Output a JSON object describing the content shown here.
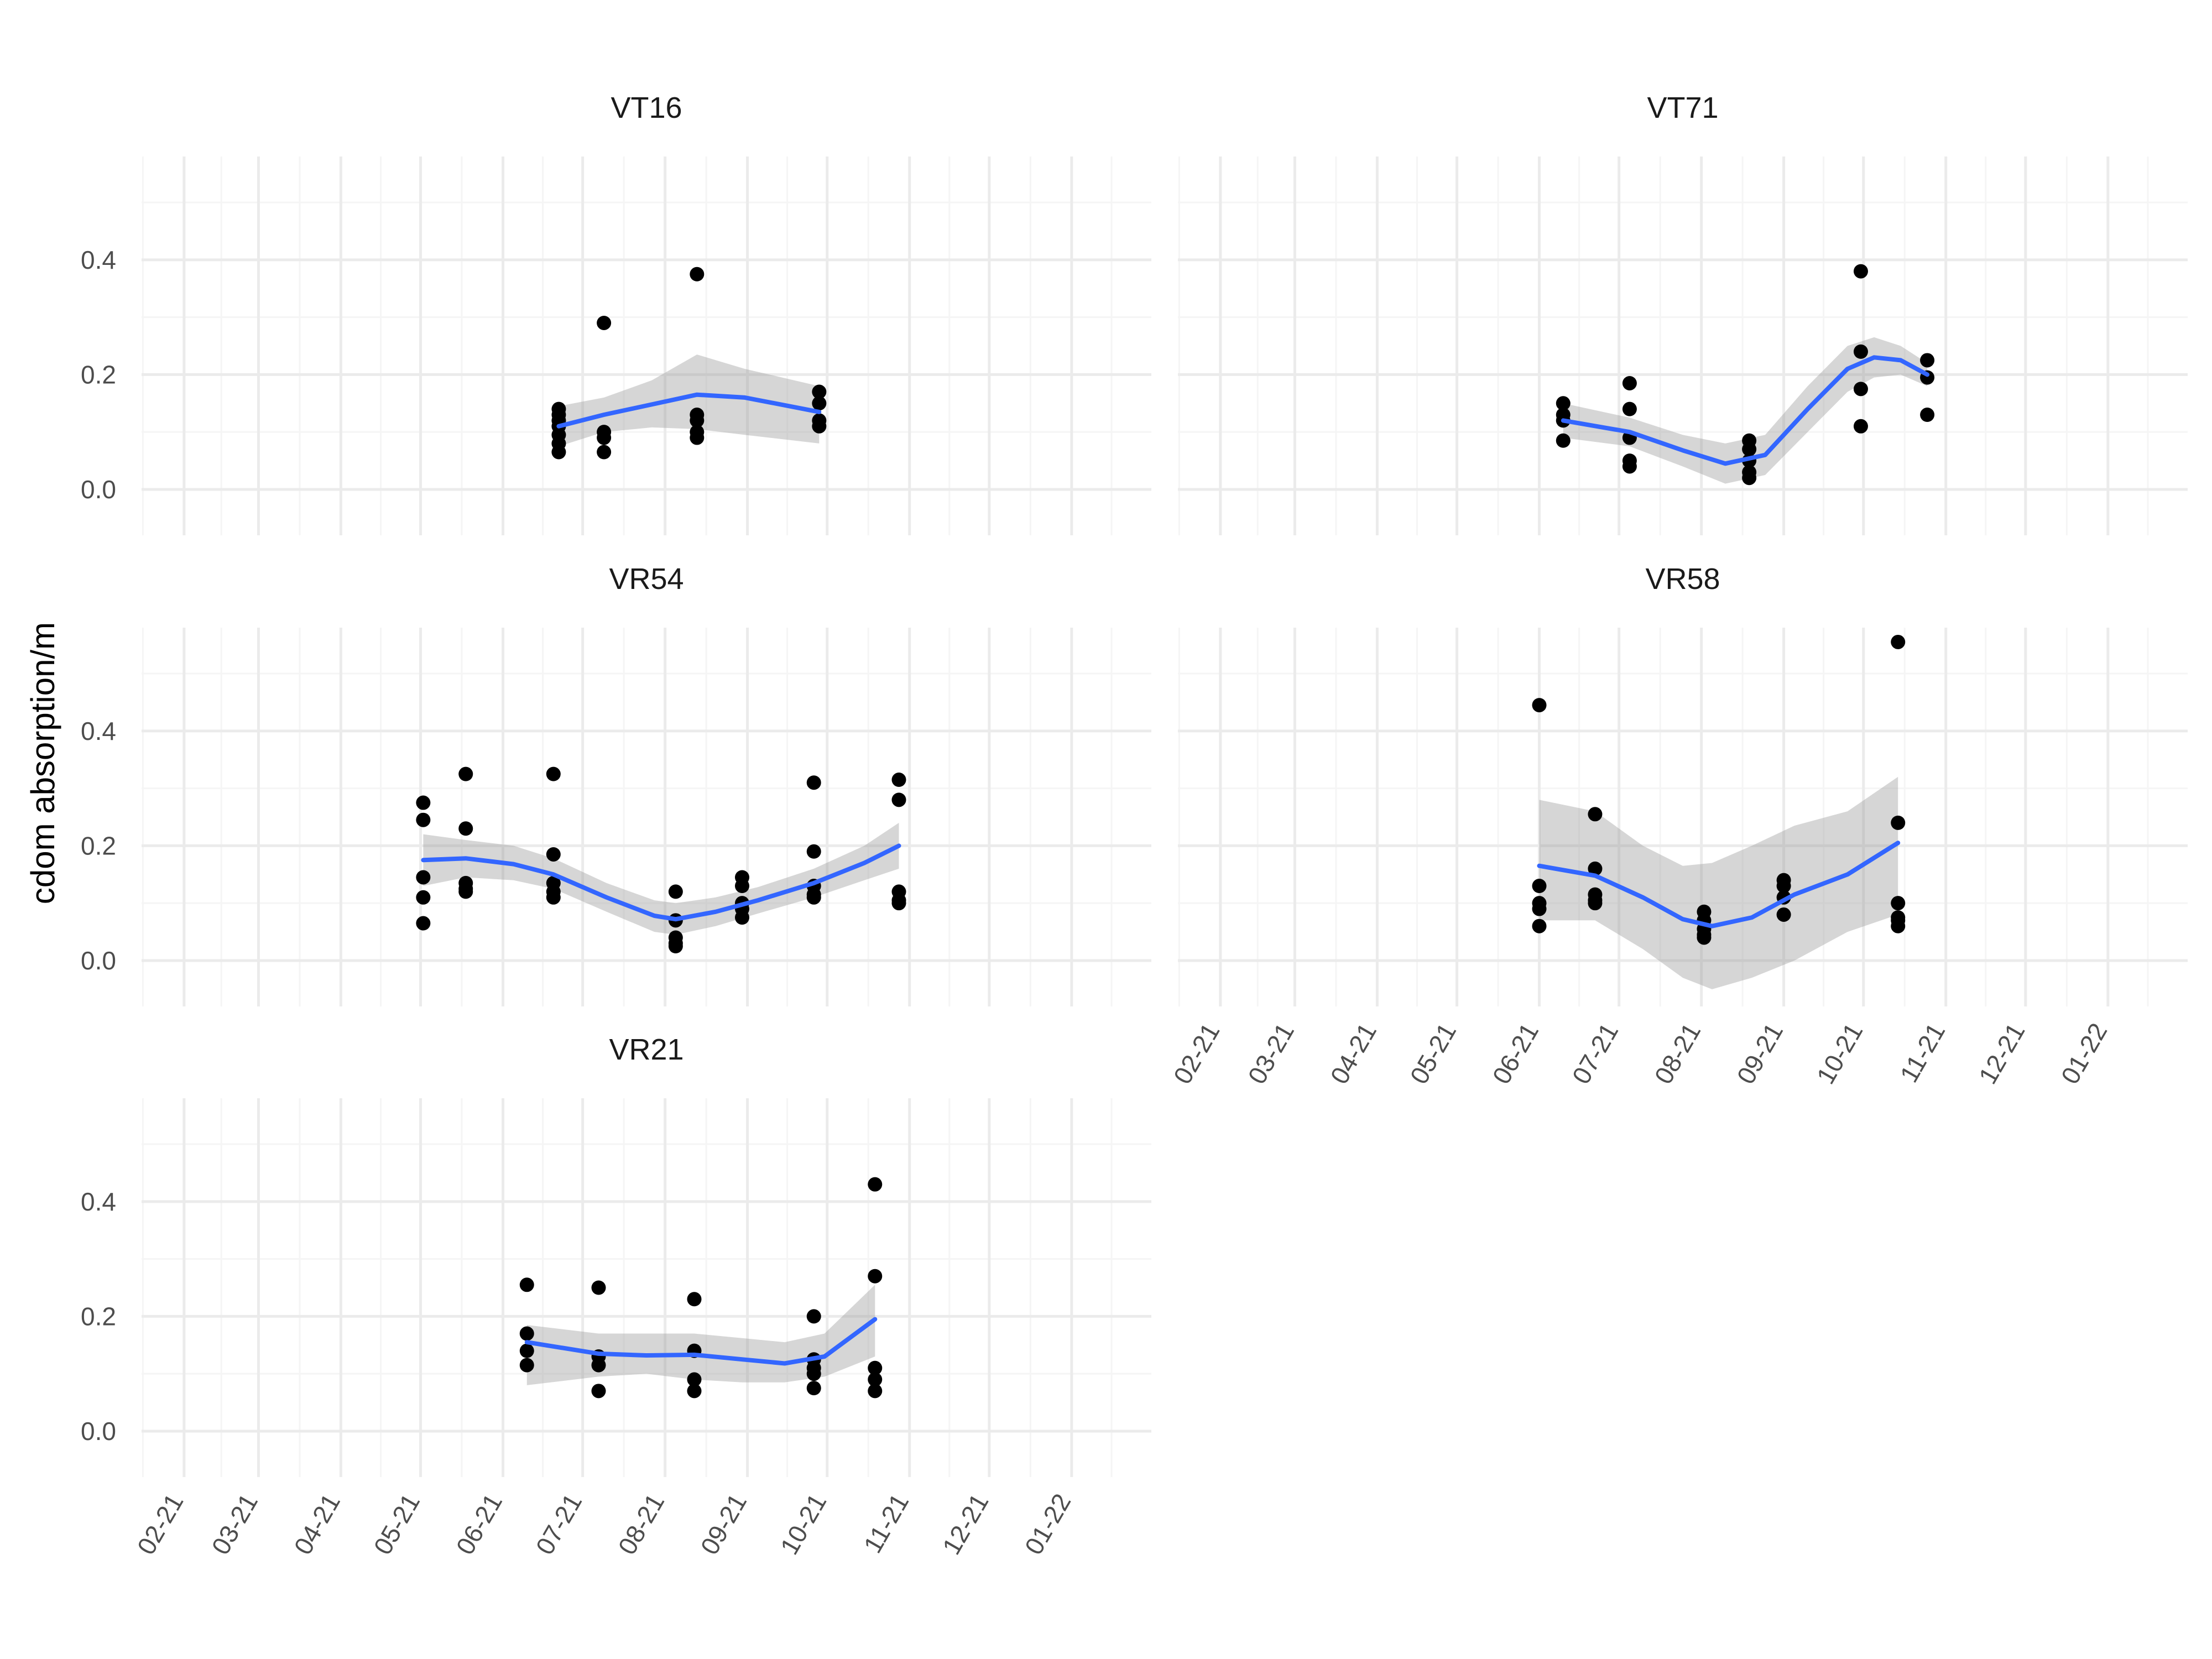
{
  "chart_data": {
    "type": "scatter",
    "ylabel": "cdom absorption/m",
    "xlabel": "",
    "ylim": [
      -0.08,
      0.58
    ],
    "yticks": [
      0.0,
      0.2,
      0.4
    ],
    "ytick_labels": [
      "0.0",
      "0.2",
      "0.4"
    ],
    "xlim": [
      "2021-01-16",
      "2022-01-31"
    ],
    "xticks": [
      "2021-02-01",
      "2021-03-01",
      "2021-04-01",
      "2021-05-01",
      "2021-06-01",
      "2021-07-01",
      "2021-08-01",
      "2021-09-01",
      "2021-10-01",
      "2021-11-01",
      "2021-12-01",
      "2022-01-01"
    ],
    "xtick_labels": [
      "02-21",
      "03-21",
      "04-21",
      "05-21",
      "06-21",
      "07-21",
      "08-21",
      "09-21",
      "10-21",
      "11-21",
      "12-21",
      "01-22"
    ],
    "grid": true,
    "colors": {
      "points": "#000000",
      "smooth_line": "#3366FF",
      "ribbon": "#999999",
      "grid_major": "#EBEBEB",
      "grid_minor": "#F5F5F5"
    },
    "panels": [
      {
        "name": "VT16",
        "points": [
          [
            "2021-06-22",
            0.065
          ],
          [
            "2021-06-22",
            0.08
          ],
          [
            "2021-06-22",
            0.095
          ],
          [
            "2021-06-22",
            0.11
          ],
          [
            "2021-06-22",
            0.12
          ],
          [
            "2021-06-22",
            0.13
          ],
          [
            "2021-06-22",
            0.14
          ],
          [
            "2021-07-09",
            0.29
          ],
          [
            "2021-07-09",
            0.065
          ],
          [
            "2021-07-09",
            0.09
          ],
          [
            "2021-07-09",
            0.1
          ],
          [
            "2021-08-13",
            0.375
          ],
          [
            "2021-08-13",
            0.09
          ],
          [
            "2021-08-13",
            0.1
          ],
          [
            "2021-08-13",
            0.12
          ],
          [
            "2021-08-13",
            0.13
          ],
          [
            "2021-09-28",
            0.17
          ],
          [
            "2021-09-28",
            0.15
          ],
          [
            "2021-09-28",
            0.12
          ],
          [
            "2021-09-28",
            0.11
          ]
        ],
        "smooth": [
          [
            "2021-06-22",
            0.11
          ],
          [
            "2021-07-09",
            0.13
          ],
          [
            "2021-07-27",
            0.148
          ],
          [
            "2021-08-13",
            0.165
          ],
          [
            "2021-08-31",
            0.16
          ],
          [
            "2021-09-28",
            0.135
          ]
        ],
        "band_low": [
          [
            "2021-06-22",
            0.075
          ],
          [
            "2021-07-09",
            0.1
          ],
          [
            "2021-07-27",
            0.108
          ],
          [
            "2021-08-13",
            0.105
          ],
          [
            "2021-08-31",
            0.095
          ],
          [
            "2021-09-28",
            0.08
          ]
        ],
        "band_high": [
          [
            "2021-06-22",
            0.145
          ],
          [
            "2021-07-09",
            0.16
          ],
          [
            "2021-07-27",
            0.19
          ],
          [
            "2021-08-13",
            0.235
          ],
          [
            "2021-08-31",
            0.21
          ],
          [
            "2021-09-28",
            0.18
          ]
        ]
      },
      {
        "name": "VT71",
        "points": [
          [
            "2021-06-10",
            0.15
          ],
          [
            "2021-06-10",
            0.13
          ],
          [
            "2021-06-10",
            0.12
          ],
          [
            "2021-06-10",
            0.085
          ],
          [
            "2021-07-05",
            0.185
          ],
          [
            "2021-07-05",
            0.14
          ],
          [
            "2021-07-05",
            0.09
          ],
          [
            "2021-07-05",
            0.05
          ],
          [
            "2021-07-05",
            0.04
          ],
          [
            "2021-08-19",
            0.085
          ],
          [
            "2021-08-19",
            0.07
          ],
          [
            "2021-08-19",
            0.05
          ],
          [
            "2021-08-19",
            0.03
          ],
          [
            "2021-08-19",
            0.02
          ],
          [
            "2021-09-30",
            0.38
          ],
          [
            "2021-09-30",
            0.24
          ],
          [
            "2021-09-30",
            0.175
          ],
          [
            "2021-09-30",
            0.11
          ],
          [
            "2021-10-25",
            0.225
          ],
          [
            "2021-10-25",
            0.195
          ],
          [
            "2021-10-25",
            0.13
          ]
        ],
        "smooth": [
          [
            "2021-06-10",
            0.12
          ],
          [
            "2021-07-05",
            0.1
          ],
          [
            "2021-07-25",
            0.068
          ],
          [
            "2021-08-10",
            0.045
          ],
          [
            "2021-08-25",
            0.06
          ],
          [
            "2021-09-10",
            0.14
          ],
          [
            "2021-09-25",
            0.21
          ],
          [
            "2021-10-05",
            0.23
          ],
          [
            "2021-10-15",
            0.225
          ],
          [
            "2021-10-25",
            0.2
          ]
        ],
        "band_low": [
          [
            "2021-06-10",
            0.09
          ],
          [
            "2021-07-05",
            0.075
          ],
          [
            "2021-07-25",
            0.04
          ],
          [
            "2021-08-10",
            0.01
          ],
          [
            "2021-08-25",
            0.025
          ],
          [
            "2021-09-10",
            0.1
          ],
          [
            "2021-09-25",
            0.17
          ],
          [
            "2021-10-05",
            0.195
          ],
          [
            "2021-10-15",
            0.2
          ],
          [
            "2021-10-25",
            0.18
          ]
        ],
        "band_high": [
          [
            "2021-06-10",
            0.15
          ],
          [
            "2021-07-05",
            0.125
          ],
          [
            "2021-07-25",
            0.095
          ],
          [
            "2021-08-10",
            0.08
          ],
          [
            "2021-08-25",
            0.095
          ],
          [
            "2021-09-10",
            0.18
          ],
          [
            "2021-09-25",
            0.25
          ],
          [
            "2021-10-05",
            0.265
          ],
          [
            "2021-10-15",
            0.25
          ],
          [
            "2021-10-25",
            0.22
          ]
        ]
      },
      {
        "name": "VR54",
        "points": [
          [
            "2021-05-02",
            0.275
          ],
          [
            "2021-05-02",
            0.245
          ],
          [
            "2021-05-02",
            0.145
          ],
          [
            "2021-05-02",
            0.11
          ],
          [
            "2021-05-02",
            0.065
          ],
          [
            "2021-05-18",
            0.325
          ],
          [
            "2021-05-18",
            0.23
          ],
          [
            "2021-05-18",
            0.135
          ],
          [
            "2021-05-18",
            0.125
          ],
          [
            "2021-05-18",
            0.12
          ],
          [
            "2021-06-20",
            0.325
          ],
          [
            "2021-06-20",
            0.185
          ],
          [
            "2021-06-20",
            0.135
          ],
          [
            "2021-06-20",
            0.12
          ],
          [
            "2021-06-20",
            0.11
          ],
          [
            "2021-08-05",
            0.12
          ],
          [
            "2021-08-05",
            0.07
          ],
          [
            "2021-08-05",
            0.04
          ],
          [
            "2021-08-05",
            0.03
          ],
          [
            "2021-08-05",
            0.025
          ],
          [
            "2021-08-30",
            0.145
          ],
          [
            "2021-08-30",
            0.13
          ],
          [
            "2021-08-30",
            0.1
          ],
          [
            "2021-08-30",
            0.09
          ],
          [
            "2021-08-30",
            0.075
          ],
          [
            "2021-09-26",
            0.31
          ],
          [
            "2021-09-26",
            0.19
          ],
          [
            "2021-09-26",
            0.13
          ],
          [
            "2021-09-26",
            0.115
          ],
          [
            "2021-09-26",
            0.11
          ],
          [
            "2021-10-28",
            0.315
          ],
          [
            "2021-10-28",
            0.28
          ],
          [
            "2021-10-28",
            0.12
          ],
          [
            "2021-10-28",
            0.105
          ],
          [
            "2021-10-28",
            0.1
          ]
        ],
        "smooth": [
          [
            "2021-05-02",
            0.175
          ],
          [
            "2021-05-18",
            0.178
          ],
          [
            "2021-06-05",
            0.168
          ],
          [
            "2021-06-20",
            0.15
          ],
          [
            "2021-07-10",
            0.11
          ],
          [
            "2021-07-28",
            0.078
          ],
          [
            "2021-08-05",
            0.072
          ],
          [
            "2021-08-20",
            0.085
          ],
          [
            "2021-09-05",
            0.105
          ],
          [
            "2021-09-26",
            0.135
          ],
          [
            "2021-10-15",
            0.17
          ],
          [
            "2021-10-28",
            0.2
          ]
        ],
        "band_low": [
          [
            "2021-05-02",
            0.13
          ],
          [
            "2021-05-18",
            0.145
          ],
          [
            "2021-06-05",
            0.14
          ],
          [
            "2021-06-20",
            0.125
          ],
          [
            "2021-07-10",
            0.085
          ],
          [
            "2021-07-28",
            0.05
          ],
          [
            "2021-08-05",
            0.045
          ],
          [
            "2021-08-20",
            0.06
          ],
          [
            "2021-09-05",
            0.082
          ],
          [
            "2021-09-26",
            0.11
          ],
          [
            "2021-10-15",
            0.14
          ],
          [
            "2021-10-28",
            0.16
          ]
        ],
        "band_high": [
          [
            "2021-05-02",
            0.22
          ],
          [
            "2021-05-18",
            0.21
          ],
          [
            "2021-06-05",
            0.2
          ],
          [
            "2021-06-20",
            0.178
          ],
          [
            "2021-07-10",
            0.135
          ],
          [
            "2021-07-28",
            0.105
          ],
          [
            "2021-08-05",
            0.1
          ],
          [
            "2021-08-20",
            0.11
          ],
          [
            "2021-09-05",
            0.128
          ],
          [
            "2021-09-26",
            0.16
          ],
          [
            "2021-10-15",
            0.2
          ],
          [
            "2021-10-28",
            0.24
          ]
        ]
      },
      {
        "name": "VR58",
        "points": [
          [
            "2021-06-01",
            0.445
          ],
          [
            "2021-06-01",
            0.13
          ],
          [
            "2021-06-01",
            0.1
          ],
          [
            "2021-06-01",
            0.09
          ],
          [
            "2021-06-01",
            0.06
          ],
          [
            "2021-06-22",
            0.255
          ],
          [
            "2021-06-22",
            0.16
          ],
          [
            "2021-06-22",
            0.115
          ],
          [
            "2021-06-22",
            0.105
          ],
          [
            "2021-06-22",
            0.1
          ],
          [
            "2021-08-02",
            0.085
          ],
          [
            "2021-08-02",
            0.07
          ],
          [
            "2021-08-02",
            0.055
          ],
          [
            "2021-08-02",
            0.045
          ],
          [
            "2021-08-02",
            0.04
          ],
          [
            "2021-09-01",
            0.14
          ],
          [
            "2021-09-01",
            0.13
          ],
          [
            "2021-09-01",
            0.11
          ],
          [
            "2021-09-01",
            0.08
          ],
          [
            "2021-10-14",
            0.555
          ],
          [
            "2021-10-14",
            0.24
          ],
          [
            "2021-10-14",
            0.1
          ],
          [
            "2021-10-14",
            0.075
          ],
          [
            "2021-10-14",
            0.07
          ],
          [
            "2021-10-14",
            0.06
          ]
        ],
        "smooth": [
          [
            "2021-06-01",
            0.165
          ],
          [
            "2021-06-22",
            0.148
          ],
          [
            "2021-07-10",
            0.11
          ],
          [
            "2021-07-25",
            0.072
          ],
          [
            "2021-08-05",
            0.06
          ],
          [
            "2021-08-20",
            0.075
          ],
          [
            "2021-09-05",
            0.115
          ],
          [
            "2021-09-25",
            0.15
          ],
          [
            "2021-10-14",
            0.205
          ]
        ],
        "band_low": [
          [
            "2021-06-01",
            0.07
          ],
          [
            "2021-06-22",
            0.07
          ],
          [
            "2021-07-10",
            0.02
          ],
          [
            "2021-07-25",
            -0.03
          ],
          [
            "2021-08-05",
            -0.05
          ],
          [
            "2021-08-20",
            -0.03
          ],
          [
            "2021-09-05",
            0.0
          ],
          [
            "2021-09-25",
            0.05
          ],
          [
            "2021-10-14",
            0.08
          ]
        ],
        "band_high": [
          [
            "2021-06-01",
            0.28
          ],
          [
            "2021-06-22",
            0.26
          ],
          [
            "2021-07-10",
            0.2
          ],
          [
            "2021-07-25",
            0.165
          ],
          [
            "2021-08-05",
            0.17
          ],
          [
            "2021-08-20",
            0.2
          ],
          [
            "2021-09-05",
            0.235
          ],
          [
            "2021-09-25",
            0.26
          ],
          [
            "2021-10-14",
            0.32
          ]
        ]
      },
      {
        "name": "VR21",
        "points": [
          [
            "2021-06-10",
            0.255
          ],
          [
            "2021-06-10",
            0.17
          ],
          [
            "2021-06-10",
            0.14
          ],
          [
            "2021-06-10",
            0.115
          ],
          [
            "2021-07-07",
            0.25
          ],
          [
            "2021-07-07",
            0.13
          ],
          [
            "2021-07-07",
            0.115
          ],
          [
            "2021-07-07",
            0.07
          ],
          [
            "2021-08-12",
            0.23
          ],
          [
            "2021-08-12",
            0.14
          ],
          [
            "2021-08-12",
            0.09
          ],
          [
            "2021-08-12",
            0.07
          ],
          [
            "2021-09-26",
            0.2
          ],
          [
            "2021-09-26",
            0.125
          ],
          [
            "2021-09-26",
            0.11
          ],
          [
            "2021-09-26",
            0.1
          ],
          [
            "2021-09-26",
            0.075
          ],
          [
            "2021-10-19",
            0.43
          ],
          [
            "2021-10-19",
            0.27
          ],
          [
            "2021-10-19",
            0.11
          ],
          [
            "2021-10-19",
            0.09
          ],
          [
            "2021-10-19",
            0.07
          ]
        ],
        "smooth": [
          [
            "2021-06-10",
            0.155
          ],
          [
            "2021-07-07",
            0.135
          ],
          [
            "2021-07-25",
            0.132
          ],
          [
            "2021-08-12",
            0.133
          ],
          [
            "2021-08-30",
            0.125
          ],
          [
            "2021-09-15",
            0.118
          ],
          [
            "2021-09-30",
            0.13
          ],
          [
            "2021-10-19",
            0.195
          ]
        ],
        "band_low": [
          [
            "2021-06-10",
            0.08
          ],
          [
            "2021-07-07",
            0.095
          ],
          [
            "2021-07-25",
            0.1
          ],
          [
            "2021-08-12",
            0.09
          ],
          [
            "2021-08-30",
            0.085
          ],
          [
            "2021-09-15",
            0.085
          ],
          [
            "2021-09-30",
            0.095
          ],
          [
            "2021-10-19",
            0.13
          ]
        ],
        "band_high": [
          [
            "2021-06-10",
            0.185
          ],
          [
            "2021-07-07",
            0.17
          ],
          [
            "2021-07-25",
            0.17
          ],
          [
            "2021-08-12",
            0.17
          ],
          [
            "2021-08-30",
            0.162
          ],
          [
            "2021-09-15",
            0.155
          ],
          [
            "2021-09-30",
            0.17
          ],
          [
            "2021-10-19",
            0.255
          ]
        ]
      }
    ]
  }
}
